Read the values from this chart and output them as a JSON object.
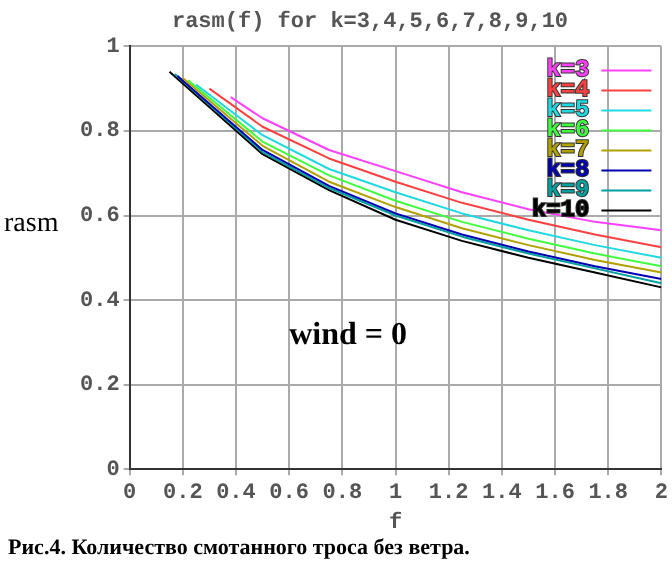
{
  "chart_data": {
    "type": "line",
    "title": "rasm(f) for k=3,4,5,6,7,8,9,10",
    "xlabel": "f",
    "ylabel": "rasm",
    "annotations": [
      "wind = 0",
      "Рис.4.  Количество смотанного троса без ветра."
    ],
    "xlim": [
      0,
      2
    ],
    "xticks": [
      0,
      0.2,
      0.4,
      0.6,
      0.8,
      1,
      1.2,
      1.4,
      1.6,
      1.8,
      2
    ],
    "ylim": [
      0,
      1
    ],
    "yticks": [
      0,
      0.2,
      0.4,
      0.6,
      0.8,
      1
    ],
    "grid": true,
    "legend": "top right",
    "marker": "none",
    "line_style": "solid",
    "series": [
      {
        "name": "k=3",
        "color": "#ff40ff",
        "x": [
          0.38,
          0.5,
          0.75,
          1,
          1.25,
          1.5,
          1.75,
          2
        ],
        "values": [
          0.88,
          0.83,
          0.755,
          0.705,
          0.655,
          0.615,
          0.585,
          0.565
        ]
      },
      {
        "name": "k=4",
        "color": "#ff4040",
        "x": [
          0.3,
          0.5,
          0.75,
          1,
          1.25,
          1.5,
          1.75,
          2
        ],
        "values": [
          0.9,
          0.81,
          0.735,
          0.68,
          0.63,
          0.59,
          0.555,
          0.525
        ]
      },
      {
        "name": "k=5",
        "color": "#20d8e0",
        "x": [
          0.25,
          0.5,
          0.75,
          1,
          1.25,
          1.5,
          1.75,
          2
        ],
        "values": [
          0.91,
          0.79,
          0.71,
          0.655,
          0.605,
          0.565,
          0.53,
          0.5
        ]
      },
      {
        "name": "k=6",
        "color": "#40ff40",
        "x": [
          0.22,
          0.5,
          0.75,
          1,
          1.25,
          1.5,
          1.75,
          2
        ],
        "values": [
          0.92,
          0.775,
          0.695,
          0.635,
          0.585,
          0.545,
          0.51,
          0.48
        ]
      },
      {
        "name": "k=7",
        "color": "#b0a000",
        "x": [
          0.2,
          0.5,
          0.75,
          1,
          1.25,
          1.5,
          1.75,
          2
        ],
        "values": [
          0.925,
          0.765,
          0.68,
          0.62,
          0.57,
          0.53,
          0.495,
          0.465
        ]
      },
      {
        "name": "k=8",
        "color": "#0000b0",
        "x": [
          0.18,
          0.5,
          0.75,
          1,
          1.25,
          1.5,
          1.75,
          2
        ],
        "values": [
          0.93,
          0.755,
          0.67,
          0.605,
          0.555,
          0.515,
          0.48,
          0.45
        ]
      },
      {
        "name": "k=9",
        "color": "#00a0a0",
        "x": [
          0.17,
          0.5,
          0.75,
          1,
          1.25,
          1.5,
          1.75,
          2
        ],
        "values": [
          0.935,
          0.75,
          0.665,
          0.6,
          0.55,
          0.51,
          0.475,
          0.44
        ]
      },
      {
        "name": "k=10",
        "color": "#000000",
        "x": [
          0.15,
          0.5,
          0.75,
          1,
          1.25,
          1.5,
          1.75,
          2
        ],
        "values": [
          0.94,
          0.745,
          0.66,
          0.59,
          0.54,
          0.5,
          0.465,
          0.43
        ]
      }
    ]
  }
}
